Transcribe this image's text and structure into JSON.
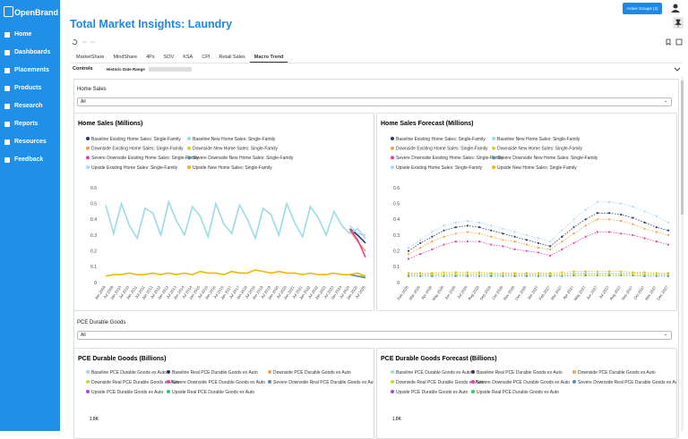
{
  "app": {
    "logo": "OpenBrand",
    "nav": [
      "Home",
      "Dashboards",
      "Placements",
      "Products",
      "Research",
      "Reports",
      "Resources",
      "Feedback"
    ]
  },
  "header": {
    "title": "Total Market Insights: Laundry",
    "button": "Active Groups (3)"
  },
  "tabs": [
    {
      "label": "MarketShare",
      "active": false
    },
    {
      "label": "MindShare",
      "active": false
    },
    {
      "label": "4Ps",
      "active": false
    },
    {
      "label": "SOV",
      "active": false
    },
    {
      "label": "KSA",
      "active": false
    },
    {
      "label": "CPI",
      "active": false
    },
    {
      "label": "Retail Sales",
      "active": false
    },
    {
      "label": "Macro Trend",
      "active": true
    }
  ],
  "controls": {
    "label": "Controls",
    "date_range_label": "Historic Date Range"
  },
  "sections": [
    {
      "label": "Home Sales",
      "select": "All",
      "charts": [
        {
          "type": "line",
          "title": "Home Sales (Millions)",
          "markers": false,
          "dashed": false,
          "categories": [
            "Jan 2009",
            "Jul 2009",
            "Jan 2010",
            "Jul 2010",
            "Jan 2011",
            "Jul 2011",
            "Jan 2012",
            "Jul 2012",
            "Jan 2013",
            "Jul 2013",
            "Jan 2014",
            "Jul 2014",
            "Jan 2015",
            "Jul 2015",
            "Jan 2016",
            "Jul 2016",
            "Jan 2017",
            "Jul 2017",
            "Jan 2018",
            "Jul 2018",
            "Jan 2019",
            "Jul 2019",
            "Jan 2020",
            "Jul 2020",
            "Jan 2021",
            "Jul 2021",
            "Jan 2022",
            "Jul 2022",
            "Jan 2023",
            "Jul 2023",
            "Jan 2024",
            "Jul 2024",
            "Jan 2025",
            "Jul 2025"
          ],
          "ylim": [
            0,
            0.6
          ],
          "yticks": [
            0,
            0.1,
            0.2,
            0.3,
            0.4,
            0.5,
            0.6
          ],
          "grid": false,
          "series": [
            {
              "name": "Baseline Existing Home Sales: Single-Family",
              "color": "#2b3a67",
              "values": [
                null,
                null,
                null,
                null,
                null,
                null,
                null,
                null,
                null,
                null,
                null,
                null,
                null,
                null,
                null,
                null,
                null,
                null,
                null,
                null,
                null,
                null,
                null,
                null,
                null,
                null,
                null,
                null,
                null,
                null,
                null,
                0.34,
                0.3,
                0.25
              ]
            },
            {
              "name": "Baseline New Home Sales: Single-Family",
              "color": "#9adbe8",
              "values": [
                0.49,
                0.31,
                0.5,
                0.36,
                0.28,
                0.47,
                0.44,
                0.3,
                0.51,
                0.39,
                0.3,
                0.48,
                0.42,
                0.29,
                0.5,
                0.37,
                0.31,
                0.49,
                0.4,
                0.28,
                0.47,
                0.43,
                0.3,
                0.5,
                0.38,
                0.29,
                0.48,
                0.41,
                0.3,
                0.45,
                0.36,
                0.31,
                0.34,
                0.28
              ]
            },
            {
              "name": "Downside Existing Home Sales: Single-Family",
              "color": "#f4a24a",
              "values": [
                null,
                null,
                null,
                null,
                null,
                null,
                null,
                null,
                null,
                null,
                null,
                null,
                null,
                null,
                null,
                null,
                null,
                null,
                null,
                null,
                null,
                null,
                null,
                null,
                null,
                null,
                null,
                null,
                null,
                null,
                null,
                0.33,
                0.26,
                0.2
              ]
            },
            {
              "name": "Downside New Home Sales: Single-Family",
              "color": "#c9d62e",
              "values": [
                null,
                null,
                null,
                null,
                null,
                null,
                null,
                null,
                null,
                null,
                null,
                null,
                null,
                null,
                null,
                null,
                null,
                null,
                null,
                null,
                null,
                null,
                null,
                null,
                null,
                null,
                null,
                null,
                null,
                null,
                null,
                0.05,
                0.04,
                0.04
              ]
            },
            {
              "name": "Severe Downside Existing Home Sales: Single-Family",
              "color": "#e83fa8",
              "values": [
                null,
                null,
                null,
                null,
                null,
                null,
                null,
                null,
                null,
                null,
                null,
                null,
                null,
                null,
                null,
                null,
                null,
                null,
                null,
                null,
                null,
                null,
                null,
                null,
                null,
                null,
                null,
                null,
                null,
                null,
                null,
                0.34,
                0.27,
                0.16
              ]
            },
            {
              "name": "Severe Downside New Home Sales: Single-Family",
              "color": "#5a8db0",
              "values": [
                null,
                null,
                null,
                null,
                null,
                null,
                null,
                null,
                null,
                null,
                null,
                null,
                null,
                null,
                null,
                null,
                null,
                null,
                null,
                null,
                null,
                null,
                null,
                null,
                null,
                null,
                null,
                null,
                null,
                null,
                null,
                0.05,
                0.04,
                0.03
              ]
            },
            {
              "name": "Upside Existing Home Sales: Single-Family",
              "color": "#a9d8f7",
              "values": [
                null,
                null,
                null,
                null,
                null,
                null,
                null,
                null,
                null,
                null,
                null,
                null,
                null,
                null,
                null,
                null,
                null,
                null,
                null,
                null,
                null,
                null,
                null,
                null,
                null,
                null,
                null,
                null,
                null,
                null,
                null,
                0.36,
                0.31,
                0.3
              ]
            },
            {
              "name": "Upside New Home Sales: Single-Family",
              "color": "#f2b705",
              "values": [
                0.04,
                0.05,
                0.05,
                0.06,
                0.05,
                0.05,
                0.06,
                0.05,
                0.06,
                0.05,
                0.06,
                0.05,
                0.07,
                0.06,
                0.06,
                0.05,
                0.07,
                0.06,
                0.06,
                0.08,
                0.07,
                0.06,
                0.07,
                0.06,
                0.06,
                0.05,
                0.06,
                0.05,
                0.05,
                0.06,
                0.05,
                0.05,
                0.06,
                0.04
              ]
            }
          ]
        },
        {
          "type": "line",
          "title": "Home Sales Forecast (Millions)",
          "markers": true,
          "dashed": true,
          "categories": [
            "Feb 2026",
            "Mar 2026",
            "Apr 2026",
            "May 2026",
            "Jun 2026",
            "Jul 2026",
            "Aug 2026",
            "Sep 2026",
            "Oct 2026",
            "Nov 2026",
            "Dec 2026",
            "Jan 2027",
            "Feb 2027",
            "Mar 2027",
            "Apr 2027",
            "May 2027",
            "Jun 2027",
            "Jul 2027",
            "Aug 2027",
            "Sep 2027",
            "Oct 2027",
            "Nov 2027",
            "Dec 2027"
          ],
          "ylim": [
            0,
            0.6
          ],
          "yticks": [
            0,
            0.1,
            0.2,
            0.3,
            0.4,
            0.5,
            0.6
          ],
          "grid": false,
          "series": [
            {
              "name": "Baseline Existing Home Sales: Single-Family",
              "color": "#2b3a67",
              "values": [
                0.2,
                0.25,
                0.29,
                0.33,
                0.35,
                0.36,
                0.35,
                0.33,
                0.31,
                0.29,
                0.27,
                0.25,
                0.23,
                0.29,
                0.35,
                0.4,
                0.44,
                0.44,
                0.43,
                0.41,
                0.38,
                0.35,
                0.33
              ]
            },
            {
              "name": "Baseline New Home Sales: Single-Family",
              "color": "#9adbe8",
              "values": [
                0.055,
                0.055,
                0.055,
                0.055,
                0.055,
                0.055,
                0.055,
                0.055,
                0.055,
                0.055,
                0.055,
                0.055,
                0.055,
                0.055,
                0.06,
                0.06,
                0.06,
                0.06,
                0.06,
                0.06,
                0.055,
                0.055,
                0.055
              ]
            },
            {
              "name": "Downside Existing Home Sales: Single-Family",
              "color": "#f4a24a",
              "values": [
                0.18,
                0.22,
                0.26,
                0.29,
                0.31,
                0.32,
                0.31,
                0.29,
                0.27,
                0.26,
                0.24,
                0.22,
                0.21,
                0.26,
                0.31,
                0.36,
                0.4,
                0.4,
                0.39,
                0.37,
                0.34,
                0.32,
                0.3
              ]
            },
            {
              "name": "Downside New Home Sales: Single-Family",
              "color": "#c9d62e",
              "values": [
                0.05,
                0.05,
                0.05,
                0.05,
                0.05,
                0.05,
                0.05,
                0.05,
                0.05,
                0.05,
                0.05,
                0.05,
                0.05,
                0.05,
                0.055,
                0.055,
                0.055,
                0.055,
                0.055,
                0.055,
                0.05,
                0.05,
                0.05
              ]
            },
            {
              "name": "Severe Downside Existing Home Sales: Single-Family",
              "color": "#e83fa8",
              "values": [
                0.15,
                0.18,
                0.21,
                0.24,
                0.26,
                0.26,
                0.26,
                0.24,
                0.23,
                0.21,
                0.2,
                0.19,
                0.17,
                0.21,
                0.25,
                0.29,
                0.32,
                0.32,
                0.31,
                0.3,
                0.28,
                0.26,
                0.24
              ]
            },
            {
              "name": "Severe Downside New Home Sales: Single-Family",
              "color": "#5a8db0",
              "values": [
                0.04,
                0.04,
                0.04,
                0.04,
                0.04,
                0.04,
                0.04,
                0.04,
                0.04,
                0.04,
                0.04,
                0.04,
                0.04,
                0.04,
                0.045,
                0.045,
                0.045,
                0.045,
                0.045,
                0.045,
                0.04,
                0.04,
                0.04
              ]
            },
            {
              "name": "Upside Existing Home Sales: Single-Family",
              "color": "#a9d8f7",
              "values": [
                0.22,
                0.27,
                0.32,
                0.36,
                0.38,
                0.39,
                0.38,
                0.36,
                0.34,
                0.32,
                0.3,
                0.28,
                0.26,
                0.33,
                0.4,
                0.46,
                0.51,
                0.51,
                0.5,
                0.48,
                0.45,
                0.42,
                0.38
              ]
            },
            {
              "name": "Upside New Home Sales: Single-Family",
              "color": "#f2b705",
              "values": [
                0.06,
                0.06,
                0.06,
                0.065,
                0.065,
                0.065,
                0.065,
                0.06,
                0.06,
                0.06,
                0.06,
                0.06,
                0.06,
                0.065,
                0.07,
                0.07,
                0.07,
                0.07,
                0.07,
                0.065,
                0.065,
                0.06,
                0.06
              ]
            }
          ]
        }
      ]
    },
    {
      "label": "PCE Durable Goods",
      "select": "All",
      "charts": [
        {
          "type": "line",
          "title": "PCE Durable Goods (Billions)",
          "yticks": [
            {
              "value": 1800,
              "label": "1.8K"
            }
          ],
          "series": [
            {
              "name": "Baseline PCE Durable Goods ex Auto",
              "color": "#9adbe8"
            },
            {
              "name": "Baseline Real PCE Durable Goods ex Auto",
              "color": "#2b3a67"
            },
            {
              "name": "Downside PCE Durable Goods ex Auto",
              "color": "#f4a24a"
            },
            {
              "name": "Downside Real PCE Durable Goods ex Auto",
              "color": "#c9d62e"
            },
            {
              "name": "Severe Downside PCE Durable Goods ex Auto",
              "color": "#e83fa8"
            },
            {
              "name": "Severe Downside Real PCE Durable Goods ex Auto",
              "color": "#5a8db0"
            },
            {
              "name": "Upside PCE Durable Goods ex Auto",
              "color": "#9b4fd9"
            },
            {
              "name": "Upside Real PCE Durable Goods ex Auto",
              "color": "#3cc46a"
            }
          ]
        },
        {
          "type": "line",
          "title": "PCE Durable Goods Forecast (Billions)",
          "yticks": [
            {
              "value": 1800,
              "label": "1.8K"
            }
          ],
          "series": [
            {
              "name": "Baseline PCE Durable Goods ex Auto",
              "color": "#9adbe8"
            },
            {
              "name": "Baseline Real PCE Durable Goods ex Auto",
              "color": "#2b3a67"
            },
            {
              "name": "Downside PCE Durable Goods ex Auto",
              "color": "#f4a24a"
            },
            {
              "name": "Downside Real PCE Durable Goods ex Auto",
              "color": "#c9d62e"
            },
            {
              "name": "Severe Downside PCE Durable Goods ex Auto",
              "color": "#e83fa8"
            },
            {
              "name": "Severe Downside Real PCE Durable Goods ex Auto",
              "color": "#5a8db0"
            },
            {
              "name": "Upside PCE Durable Goods ex Auto",
              "color": "#9b4fd9"
            },
            {
              "name": "Upside Real PCE Durable Goods ex Auto",
              "color": "#3cc46a"
            }
          ]
        }
      ]
    }
  ]
}
